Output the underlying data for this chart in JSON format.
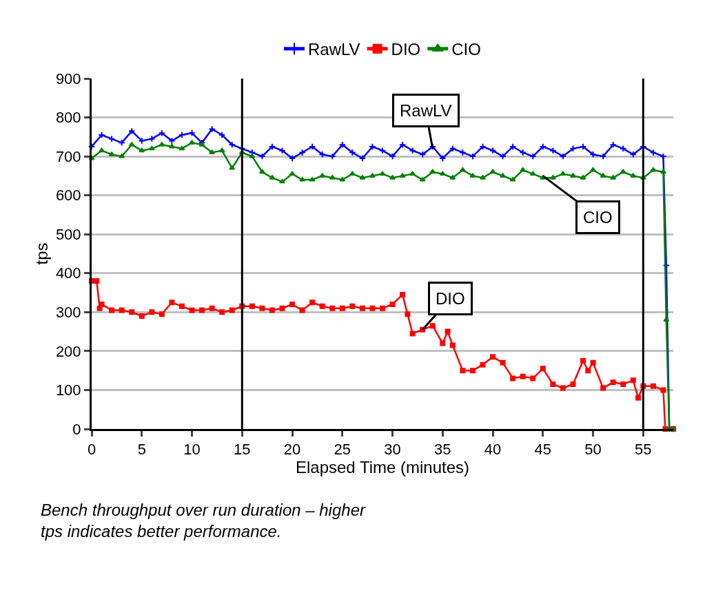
{
  "chart_data": {
    "type": "line",
    "xlabel": "Elapsed Time (minutes)",
    "ylabel": "tps",
    "xlim": [
      0,
      58
    ],
    "xticks": [
      0,
      5,
      10,
      15,
      20,
      25,
      30,
      35,
      40,
      45,
      50,
      55
    ],
    "ylim": [
      0,
      900
    ],
    "yticks": [
      0,
      100,
      200,
      300,
      400,
      500,
      600,
      700,
      800,
      900
    ],
    "grid": "y",
    "legend": "top",
    "series": [
      {
        "name": "RawLV",
        "color": "#0000ff",
        "marker": "cross",
        "x": [
          0,
          1,
          2,
          3,
          4,
          5,
          6,
          7,
          8,
          9,
          10,
          11,
          12,
          13,
          14,
          15,
          16,
          17,
          18,
          19,
          20,
          21,
          22,
          23,
          24,
          25,
          26,
          27,
          28,
          29,
          30,
          31,
          32,
          33,
          34,
          35,
          36,
          37,
          38,
          39,
          40,
          41,
          42,
          43,
          44,
          45,
          46,
          47,
          48,
          49,
          50,
          51,
          52,
          53,
          54,
          55,
          56,
          57,
          57.3,
          57.6,
          58
        ],
        "values": [
          725,
          755,
          745,
          735,
          765,
          740,
          745,
          760,
          740,
          755,
          760,
          735,
          770,
          755,
          730,
          720,
          710,
          700,
          725,
          715,
          695,
          710,
          725,
          705,
          700,
          730,
          710,
          695,
          725,
          715,
          700,
          730,
          715,
          705,
          725,
          695,
          720,
          710,
          700,
          725,
          715,
          700,
          725,
          710,
          700,
          725,
          715,
          700,
          720,
          725,
          705,
          700,
          730,
          720,
          705,
          725,
          710,
          700,
          420,
          0,
          0
        ]
      },
      {
        "name": "DIO",
        "color": "#ff0000",
        "marker": "square",
        "x": [
          0,
          0.5,
          0.8,
          1,
          2,
          3,
          4,
          5,
          6,
          7,
          8,
          9,
          10,
          11,
          12,
          13,
          14,
          15,
          16,
          17,
          18,
          19,
          20,
          21,
          22,
          23,
          24,
          25,
          26,
          27,
          28,
          29,
          30,
          31,
          31.5,
          32,
          33,
          34,
          35,
          35.5,
          36,
          37,
          38,
          39,
          40,
          41,
          42,
          43,
          44,
          45,
          46,
          47,
          48,
          49,
          49.5,
          50,
          51,
          52,
          53,
          54,
          54.5,
          55,
          56,
          57,
          57.2,
          58
        ],
        "values": [
          380,
          380,
          310,
          320,
          305,
          305,
          300,
          290,
          300,
          295,
          325,
          315,
          305,
          305,
          310,
          300,
          305,
          315,
          315,
          310,
          305,
          310,
          320,
          305,
          325,
          315,
          310,
          310,
          315,
          310,
          310,
          310,
          320,
          345,
          295,
          245,
          255,
          265,
          220,
          250,
          215,
          150,
          150,
          165,
          185,
          170,
          130,
          135,
          130,
          155,
          115,
          105,
          115,
          175,
          150,
          170,
          105,
          120,
          115,
          125,
          80,
          110,
          110,
          100,
          0,
          0
        ]
      },
      {
        "name": "CIO",
        "color": "#008000",
        "marker": "triangle",
        "x": [
          0,
          1,
          2,
          3,
          4,
          5,
          6,
          7,
          8,
          9,
          10,
          11,
          12,
          13,
          14,
          15,
          16,
          17,
          18,
          19,
          20,
          21,
          22,
          23,
          24,
          25,
          26,
          27,
          28,
          29,
          30,
          31,
          32,
          33,
          34,
          35,
          36,
          37,
          38,
          39,
          40,
          41,
          42,
          43,
          44,
          45,
          46,
          47,
          48,
          49,
          50,
          51,
          52,
          53,
          54,
          55,
          56,
          57,
          57.3,
          57.6,
          58
        ],
        "values": [
          695,
          715,
          705,
          700,
          730,
          715,
          720,
          730,
          725,
          720,
          735,
          730,
          710,
          715,
          670,
          710,
          700,
          660,
          645,
          635,
          655,
          640,
          640,
          650,
          645,
          640,
          655,
          645,
          650,
          655,
          645,
          650,
          655,
          640,
          660,
          655,
          645,
          665,
          650,
          645,
          660,
          650,
          640,
          665,
          655,
          645,
          645,
          655,
          650,
          645,
          665,
          650,
          645,
          660,
          650,
          645,
          665,
          660,
          280,
          0,
          0
        ]
      }
    ],
    "ref_lines": [
      {
        "axis": "x",
        "value": 15,
        "color": "#000000"
      },
      {
        "axis": "x",
        "value": 55,
        "color": "#000000"
      }
    ],
    "annotations": [
      {
        "text": "RawLV",
        "x": 34,
        "y": 720
      },
      {
        "text": "CIO",
        "x": 45,
        "y": 650
      },
      {
        "text": "DIO",
        "x": 33,
        "y": 255
      },
      "Bench throughput over run duration – higher\ntps indicates better performance."
    ]
  }
}
